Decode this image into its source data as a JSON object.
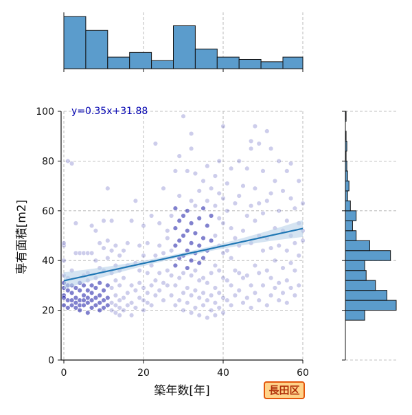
{
  "chart_data": {
    "type": "scatter",
    "xlabel": "築年数[年]",
    "ylabel": "専有面積[m2]",
    "xlim": [
      0,
      60
    ],
    "ylim": [
      0,
      100
    ],
    "xticks": [
      "0",
      "20",
      "40",
      "60"
    ],
    "yticks": [
      "0",
      "20",
      "40",
      "60",
      "80",
      "100"
    ],
    "grid": true,
    "regression": {
      "label": "y=0.35x+31.88",
      "slope": 0.35,
      "intercept": 31.88
    },
    "points": [
      [
        0,
        26
      ],
      [
        0,
        25
      ],
      [
        0,
        22
      ],
      [
        0,
        34
      ],
      [
        0,
        40
      ],
      [
        0,
        46
      ],
      [
        0,
        47
      ],
      [
        0,
        31
      ],
      [
        0,
        29
      ],
      [
        1,
        24
      ],
      [
        1,
        28
      ],
      [
        1,
        21
      ],
      [
        1,
        30
      ],
      [
        1,
        33
      ],
      [
        1,
        80
      ],
      [
        2,
        22
      ],
      [
        2,
        24
      ],
      [
        2,
        27
      ],
      [
        2,
        30
      ],
      [
        2,
        36
      ],
      [
        2,
        79
      ],
      [
        3,
        21
      ],
      [
        3,
        23
      ],
      [
        3,
        25
      ],
      [
        3,
        29
      ],
      [
        3,
        55
      ],
      [
        3,
        43
      ],
      [
        4,
        20
      ],
      [
        4,
        22
      ],
      [
        4,
        24
      ],
      [
        4,
        28
      ],
      [
        4,
        31
      ],
      [
        4,
        43
      ],
      [
        5,
        22
      ],
      [
        5,
        24
      ],
      [
        5,
        26
      ],
      [
        5,
        30
      ],
      [
        5,
        34
      ],
      [
        5,
        43
      ],
      [
        6,
        19
      ],
      [
        6,
        23
      ],
      [
        6,
        25
      ],
      [
        6,
        28
      ],
      [
        6,
        32
      ],
      [
        6,
        35
      ],
      [
        6,
        43
      ],
      [
        7,
        21
      ],
      [
        7,
        24
      ],
      [
        7,
        27
      ],
      [
        7,
        30
      ],
      [
        7,
        54
      ],
      [
        7,
        43
      ],
      [
        8,
        22
      ],
      [
        8,
        25
      ],
      [
        8,
        29
      ],
      [
        8,
        33
      ],
      [
        8,
        40
      ],
      [
        8,
        52
      ],
      [
        9,
        20
      ],
      [
        9,
        23
      ],
      [
        9,
        26
      ],
      [
        9,
        31
      ],
      [
        9,
        37
      ],
      [
        9,
        47
      ],
      [
        10,
        21
      ],
      [
        10,
        24
      ],
      [
        10,
        28
      ],
      [
        10,
        36
      ],
      [
        10,
        45
      ],
      [
        10,
        56
      ],
      [
        11,
        22
      ],
      [
        11,
        25
      ],
      [
        11,
        30
      ],
      [
        11,
        41
      ],
      [
        11,
        48
      ],
      [
        11,
        69
      ],
      [
        12,
        20
      ],
      [
        12,
        23
      ],
      [
        12,
        29
      ],
      [
        12,
        35
      ],
      [
        12,
        44
      ],
      [
        12,
        56
      ],
      [
        13,
        19
      ],
      [
        13,
        22
      ],
      [
        13,
        26
      ],
      [
        13,
        32
      ],
      [
        13,
        38
      ],
      [
        13,
        46
      ],
      [
        14,
        18
      ],
      [
        14,
        21
      ],
      [
        14,
        24
      ],
      [
        14,
        30
      ],
      [
        14,
        36
      ],
      [
        14,
        42
      ],
      [
        15,
        20
      ],
      [
        15,
        25
      ],
      [
        15,
        33
      ],
      [
        15,
        44
      ],
      [
        16,
        22
      ],
      [
        16,
        27
      ],
      [
        16,
        38
      ],
      [
        16,
        47
      ],
      [
        17,
        18
      ],
      [
        17,
        23
      ],
      [
        17,
        30
      ],
      [
        17,
        56
      ],
      [
        18,
        21
      ],
      [
        18,
        28
      ],
      [
        18,
        39
      ],
      [
        18,
        64
      ],
      [
        19,
        25
      ],
      [
        19,
        31
      ],
      [
        19,
        36
      ],
      [
        19,
        46
      ],
      [
        20,
        20
      ],
      [
        20,
        24
      ],
      [
        20,
        29
      ],
      [
        20,
        42
      ],
      [
        20,
        54
      ],
      [
        21,
        23
      ],
      [
        21,
        27
      ],
      [
        21,
        35
      ],
      [
        21,
        47
      ],
      [
        22,
        22
      ],
      [
        22,
        30
      ],
      [
        22,
        38
      ],
      [
        22,
        58
      ],
      [
        23,
        26
      ],
      [
        23,
        32
      ],
      [
        23,
        42
      ],
      [
        23,
        87
      ],
      [
        24,
        28
      ],
      [
        24,
        35
      ],
      [
        24,
        46
      ],
      [
        24,
        55
      ],
      [
        25,
        24
      ],
      [
        25,
        31
      ],
      [
        25,
        43
      ],
      [
        25,
        69
      ],
      [
        26,
        30
      ],
      [
        26,
        36
      ],
      [
        26,
        49
      ],
      [
        26,
        52
      ],
      [
        27,
        26
      ],
      [
        27,
        34
      ],
      [
        27,
        44
      ],
      [
        27,
        58
      ],
      [
        28,
        22
      ],
      [
        28,
        30
      ],
      [
        28,
        38
      ],
      [
        28,
        46
      ],
      [
        28,
        53
      ],
      [
        28,
        61
      ],
      [
        28,
        76
      ],
      [
        29,
        24
      ],
      [
        29,
        33
      ],
      [
        29,
        41
      ],
      [
        29,
        48
      ],
      [
        29,
        56
      ],
      [
        29,
        66
      ],
      [
        29,
        82
      ],
      [
        30,
        20
      ],
      [
        30,
        27
      ],
      [
        30,
        35
      ],
      [
        30,
        42
      ],
      [
        30,
        50
      ],
      [
        30,
        58
      ],
      [
        30,
        98
      ],
      [
        31,
        23
      ],
      [
        31,
        29
      ],
      [
        31,
        37
      ],
      [
        31,
        44
      ],
      [
        31,
        52
      ],
      [
        31,
        60
      ],
      [
        31,
        76
      ],
      [
        32,
        19
      ],
      [
        32,
        26
      ],
      [
        32,
        34
      ],
      [
        32,
        40
      ],
      [
        32,
        47
      ],
      [
        32,
        55
      ],
      [
        32,
        64
      ],
      [
        32,
        85
      ],
      [
        32,
        91
      ],
      [
        33,
        21
      ],
      [
        33,
        28
      ],
      [
        33,
        36
      ],
      [
        33,
        43
      ],
      [
        33,
        51
      ],
      [
        33,
        62
      ],
      [
        33,
        75
      ],
      [
        34,
        18
      ],
      [
        34,
        25
      ],
      [
        34,
        32
      ],
      [
        34,
        39
      ],
      [
        34,
        46
      ],
      [
        34,
        57
      ],
      [
        34,
        68
      ],
      [
        35,
        22
      ],
      [
        35,
        27
      ],
      [
        35,
        33
      ],
      [
        35,
        41
      ],
      [
        35,
        49
      ],
      [
        35,
        61
      ],
      [
        35,
        72
      ],
      [
        36,
        17
      ],
      [
        36,
        24
      ],
      [
        36,
        31
      ],
      [
        36,
        44
      ],
      [
        36,
        54
      ],
      [
        36,
        64
      ],
      [
        36,
        78
      ],
      [
        37,
        20
      ],
      [
        37,
        26
      ],
      [
        37,
        35
      ],
      [
        37,
        48
      ],
      [
        37,
        58
      ],
      [
        37,
        69
      ],
      [
        38,
        18
      ],
      [
        38,
        23
      ],
      [
        38,
        29
      ],
      [
        38,
        38
      ],
      [
        38,
        50
      ],
      [
        38,
        62
      ],
      [
        38,
        74
      ],
      [
        39,
        21
      ],
      [
        39,
        27
      ],
      [
        39,
        36
      ],
      [
        39,
        46
      ],
      [
        39,
        57
      ],
      [
        39,
        67
      ],
      [
        39,
        80
      ],
      [
        40,
        19
      ],
      [
        40,
        25
      ],
      [
        40,
        33
      ],
      [
        40,
        43
      ],
      [
        40,
        55
      ],
      [
        40,
        65
      ],
      [
        40,
        94
      ],
      [
        41,
        24
      ],
      [
        41,
        32
      ],
      [
        41,
        44
      ],
      [
        41,
        60
      ],
      [
        41,
        71
      ],
      [
        42,
        22
      ],
      [
        42,
        30
      ],
      [
        42,
        41
      ],
      [
        42,
        53
      ],
      [
        42,
        77
      ],
      [
        43,
        26
      ],
      [
        43,
        36
      ],
      [
        43,
        49
      ],
      [
        43,
        63
      ],
      [
        44,
        28
      ],
      [
        44,
        35
      ],
      [
        44,
        46
      ],
      [
        44,
        66
      ],
      [
        44,
        80
      ],
      [
        45,
        23
      ],
      [
        45,
        33
      ],
      [
        45,
        52
      ],
      [
        45,
        70
      ],
      [
        46,
        25
      ],
      [
        46,
        34
      ],
      [
        46,
        58
      ],
      [
        46,
        77
      ],
      [
        47,
        21
      ],
      [
        47,
        30
      ],
      [
        47,
        47
      ],
      [
        47,
        62
      ],
      [
        47,
        85
      ],
      [
        47,
        88
      ],
      [
        48,
        27
      ],
      [
        48,
        38
      ],
      [
        48,
        56
      ],
      [
        48,
        69
      ],
      [
        48,
        94
      ],
      [
        49,
        24
      ],
      [
        49,
        35
      ],
      [
        49,
        50
      ],
      [
        49,
        63
      ],
      [
        49,
        87
      ],
      [
        50,
        30
      ],
      [
        50,
        44
      ],
      [
        50,
        59
      ],
      [
        50,
        76
      ],
      [
        51,
        22
      ],
      [
        51,
        36
      ],
      [
        51,
        49
      ],
      [
        51,
        64
      ],
      [
        51,
        92
      ],
      [
        52,
        26
      ],
      [
        52,
        33
      ],
      [
        52,
        45
      ],
      [
        52,
        67
      ],
      [
        52,
        85
      ],
      [
        53,
        29
      ],
      [
        53,
        40
      ],
      [
        53,
        53
      ],
      [
        53,
        72
      ],
      [
        54,
        24
      ],
      [
        54,
        31
      ],
      [
        54,
        46
      ],
      [
        54,
        60
      ],
      [
        54,
        80
      ],
      [
        55,
        27
      ],
      [
        55,
        37
      ],
      [
        55,
        52
      ],
      [
        55,
        68
      ],
      [
        56,
        23
      ],
      [
        56,
        32
      ],
      [
        56,
        44
      ],
      [
        56,
        56
      ],
      [
        56,
        76
      ],
      [
        57,
        29
      ],
      [
        57,
        39
      ],
      [
        57,
        50
      ],
      [
        57,
        65
      ],
      [
        57,
        79
      ],
      [
        58,
        26
      ],
      [
        58,
        36
      ],
      [
        58,
        47
      ],
      [
        58,
        61
      ],
      [
        59,
        30
      ],
      [
        59,
        42
      ],
      [
        59,
        55
      ],
      [
        59,
        72
      ],
      [
        60,
        48
      ],
      [
        60,
        63
      ],
      [
        60,
        52
      ]
    ],
    "x_histogram": {
      "bin_edges": [
        0,
        5.5,
        11,
        16.5,
        22,
        27.5,
        33,
        38.5,
        44,
        49.5,
        55,
        60
      ],
      "counts": [
        45,
        33,
        10,
        14,
        7,
        37,
        17,
        10,
        8,
        6,
        10
      ]
    },
    "y_histogram": {
      "bin_edges": [
        16,
        20,
        24,
        28,
        32,
        36,
        40,
        44,
        48,
        52,
        56,
        60,
        64,
        68,
        72,
        76,
        80,
        84,
        88,
        92,
        96,
        100
      ],
      "counts": [
        27,
        71,
        58,
        42,
        29,
        27,
        63,
        34,
        15,
        10,
        15,
        7,
        3,
        5,
        3,
        2,
        1,
        2,
        1,
        0,
        1
      ]
    }
  },
  "badge": {
    "label": "長田区"
  },
  "colors": {
    "point": "#1a1aa6",
    "regression_line": "#1f77b4",
    "ci_band": "#b9d2ea",
    "hist_fill": "#5b9ccc",
    "hist_edge": "#111111",
    "grid": "#aaaaaa",
    "annotation": "#0000b0",
    "badge_border": "#e3560c",
    "badge_fill": "#ffd38a",
    "badge_text": "#b0300a"
  }
}
